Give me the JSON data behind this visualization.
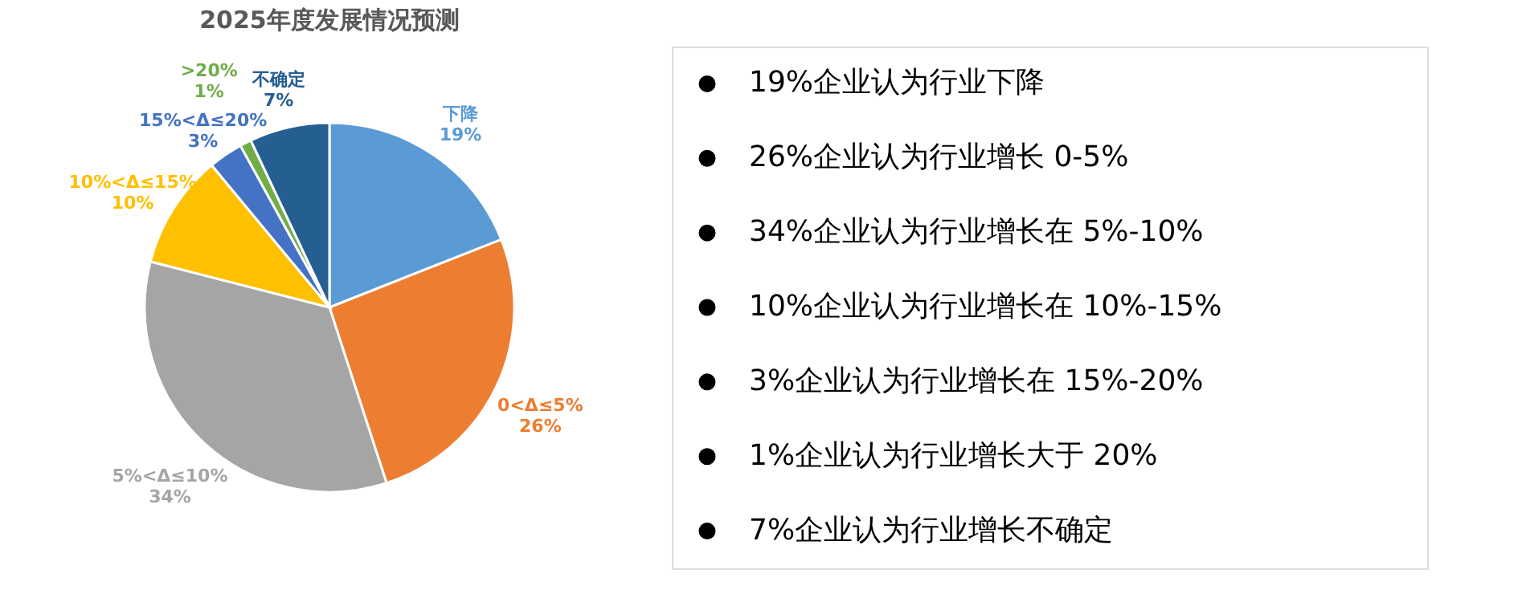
{
  "chart_data": [
    {
      "type": "pie",
      "title": "2025年度发展情况预测",
      "categories": [
        "下降",
        "0<Δ≤5%",
        "5%<Δ≤10%",
        "10%<Δ≤15%",
        "15%<Δ≤20%",
        ">20%",
        "不确定"
      ],
      "values": [
        19,
        26,
        34,
        10,
        3,
        1,
        7
      ],
      "value_labels": [
        "19%",
        "26%",
        "34%",
        "10%",
        "3%",
        "1%",
        "7%"
      ],
      "colors": [
        "#5b9bd5",
        "#ed7d31",
        "#a5a5a5",
        "#ffc000",
        "#4472c4",
        "#70ad47",
        "#255e91"
      ],
      "legend": false
    },
    {
      "type": "other",
      "annotations": [
        "19%企业认为行业下降",
        "26%企业认为行业增长 0-5%",
        "34%企业认为行业增长在 5%-10%",
        "10%企业认为行业增长在 10%-15%",
        "3%企业认为行业增长在 15%-20%",
        "1%企业认为行业增长大于 20%",
        "7%企业认为行业增长不确定"
      ]
    }
  ]
}
